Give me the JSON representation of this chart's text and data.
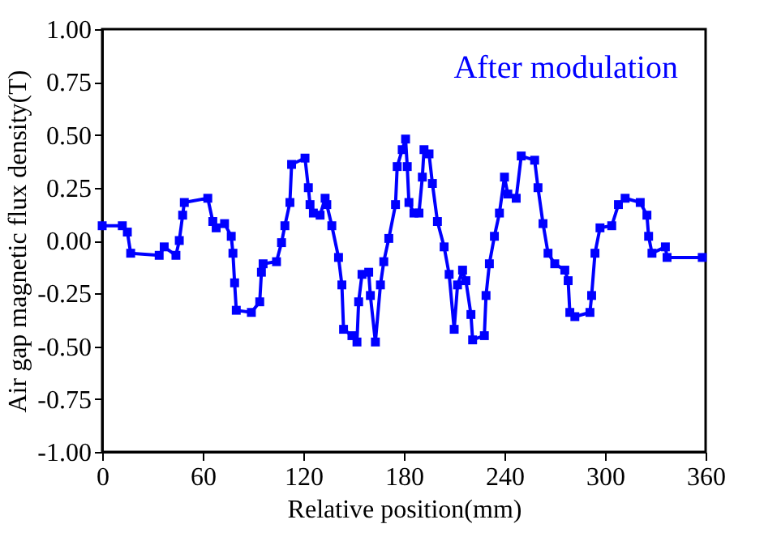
{
  "chart_data": {
    "type": "line",
    "xlabel": "Relative position(mm)",
    "ylabel": "Air gap magnetic flux density(T)",
    "annotations": [
      "After modulation"
    ],
    "x": [
      0,
      12,
      15,
      17,
      34,
      37,
      44,
      46,
      48,
      49,
      63,
      66,
      68,
      73,
      77,
      78,
      79,
      80,
      89,
      94,
      95,
      96,
      104,
      107,
      109,
      112,
      113,
      121,
      123,
      124,
      126,
      130,
      133,
      134,
      137,
      141,
      143,
      144,
      149,
      152,
      153,
      155,
      159,
      160,
      163,
      166,
      168,
      171,
      175,
      176,
      179,
      181,
      182,
      183,
      186,
      189,
      191,
      192,
      195,
      197,
      200,
      204,
      207,
      210,
      212,
      215,
      217,
      220,
      221,
      228,
      229,
      231,
      234,
      237,
      240,
      242,
      247,
      250,
      258,
      260,
      263,
      266,
      270,
      276,
      278,
      279,
      282,
      291,
      292,
      294,
      297,
      304,
      308,
      312,
      321,
      325,
      326,
      328,
      336,
      337,
      358
    ],
    "series": [
      {
        "color": "#0000ff",
        "values": [
          0.07,
          0.07,
          0.04,
          -0.06,
          -0.07,
          -0.03,
          -0.07,
          0.0,
          0.12,
          0.18,
          0.2,
          0.09,
          0.06,
          0.08,
          0.02,
          -0.06,
          -0.2,
          -0.33,
          -0.34,
          -0.29,
          -0.15,
          -0.11,
          -0.1,
          -0.01,
          0.07,
          0.18,
          0.36,
          0.39,
          0.25,
          0.17,
          0.13,
          0.12,
          0.2,
          0.17,
          0.07,
          -0.08,
          -0.21,
          -0.42,
          -0.45,
          -0.48,
          -0.29,
          -0.16,
          -0.15,
          -0.26,
          -0.48,
          -0.21,
          -0.1,
          0.01,
          0.17,
          0.35,
          0.43,
          0.48,
          0.35,
          0.18,
          0.13,
          0.13,
          0.3,
          0.43,
          0.41,
          0.27,
          0.09,
          -0.03,
          -0.16,
          -0.42,
          -0.21,
          -0.14,
          -0.19,
          -0.35,
          -0.47,
          -0.45,
          -0.26,
          -0.11,
          0.02,
          0.13,
          0.3,
          0.22,
          0.2,
          0.4,
          0.38,
          0.25,
          0.08,
          -0.06,
          -0.11,
          -0.14,
          -0.19,
          -0.34,
          -0.36,
          -0.34,
          -0.26,
          -0.06,
          0.06,
          0.07,
          0.17,
          0.2,
          0.18,
          0.12,
          0.02,
          -0.06,
          -0.03,
          -0.08,
          -0.08
        ]
      }
    ],
    "xlim": [
      0,
      360
    ],
    "xticks": [
      0,
      60,
      120,
      180,
      240,
      300,
      360
    ],
    "ylim": [
      -1,
      1
    ],
    "yticks": [
      {
        "value": -1,
        "label": "-1.00"
      },
      {
        "value": -0.75,
        "label": "-0.75"
      },
      {
        "value": -0.5,
        "label": "-0.50"
      },
      {
        "value": -0.25,
        "label": "-0.25"
      },
      {
        "value": 0,
        "label": "0.00"
      },
      {
        "value": 0.25,
        "label": "0.25"
      },
      {
        "value": 0.5,
        "label": "0.50"
      },
      {
        "value": 0.75,
        "label": "0.75"
      },
      {
        "value": 1,
        "label": "1.00"
      }
    ],
    "grid": false,
    "marker": "square",
    "line_style": "solid"
  }
}
